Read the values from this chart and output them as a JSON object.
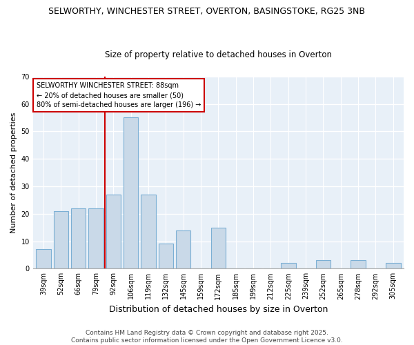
{
  "title_line1": "SELWORTHY, WINCHESTER STREET, OVERTON, BASINGSTOKE, RG25 3NB",
  "title_line2": "Size of property relative to detached houses in Overton",
  "xlabel": "Distribution of detached houses by size in Overton",
  "ylabel": "Number of detached properties",
  "categories": [
    "39sqm",
    "52sqm",
    "66sqm",
    "79sqm",
    "92sqm",
    "106sqm",
    "119sqm",
    "132sqm",
    "145sqm",
    "159sqm",
    "172sqm",
    "185sqm",
    "199sqm",
    "212sqm",
    "225sqm",
    "239sqm",
    "252sqm",
    "265sqm",
    "278sqm",
    "292sqm",
    "305sqm"
  ],
  "values": [
    7,
    21,
    22,
    22,
    27,
    55,
    27,
    9,
    14,
    0,
    15,
    0,
    0,
    0,
    2,
    0,
    3,
    0,
    3,
    0,
    2
  ],
  "bar_color": "#c9d9e8",
  "bar_edge_color": "#7bafd4",
  "vline_color": "#cc0000",
  "vline_index": 3.5,
  "annotation_text": "SELWORTHY WINCHESTER STREET: 88sqm\n← 20% of detached houses are smaller (50)\n80% of semi-detached houses are larger (196) →",
  "annotation_box_color": "#ffffff",
  "annotation_box_edge": "#cc0000",
  "ylim": [
    0,
    70
  ],
  "yticks": [
    0,
    10,
    20,
    30,
    40,
    50,
    60,
    70
  ],
  "footnote": "Contains HM Land Registry data © Crown copyright and database right 2025.\nContains public sector information licensed under the Open Government Licence v3.0.",
  "bg_color": "#ffffff",
  "plot_bg_color": "#e8f0f8",
  "title_fontsize": 9,
  "subtitle_fontsize": 8.5,
  "ylabel_fontsize": 8,
  "xlabel_fontsize": 9,
  "tick_fontsize": 7,
  "footnote_fontsize": 6.5
}
